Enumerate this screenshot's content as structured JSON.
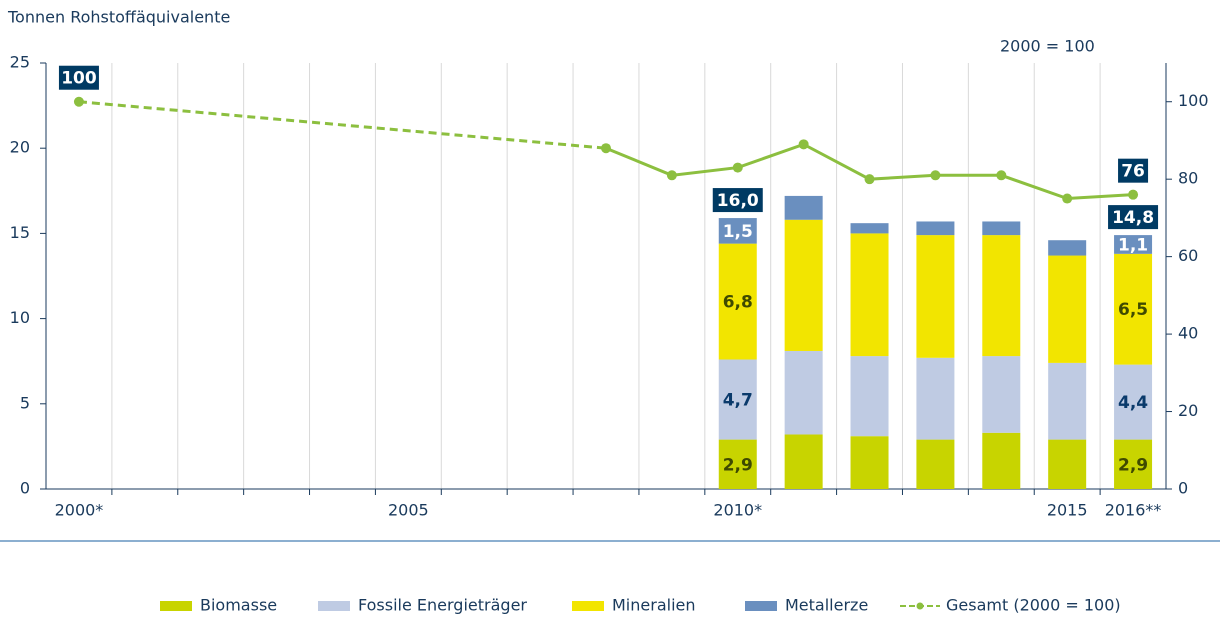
{
  "chart_data": {
    "type": "bar",
    "stacked": true,
    "y_axis_label": "Tonnen Rohstoffäquivalente",
    "y2_axis_label": "2000 = 100",
    "categories": [
      "2000*",
      null,
      null,
      null,
      null,
      "2005",
      null,
      null,
      null,
      null,
      "2010*",
      null,
      null,
      null,
      null,
      "2015",
      "2016**"
    ],
    "ylim": [
      0,
      25
    ],
    "yticks": [
      0,
      5,
      10,
      15,
      20,
      25
    ],
    "y2lim": [
      0,
      110
    ],
    "y2ticks": [
      0,
      20,
      40,
      60,
      80,
      100
    ],
    "grid": "x",
    "legend": "bottom",
    "series": [
      {
        "name": "Biomasse",
        "color": "#c8d400",
        "label_color": "#3f4a00",
        "values": [
          null,
          null,
          null,
          null,
          null,
          null,
          null,
          null,
          null,
          null,
          2.9,
          3.2,
          3.1,
          2.9,
          3.3,
          2.9,
          2.9
        ],
        "value_labels": [
          null,
          null,
          null,
          null,
          null,
          null,
          null,
          null,
          null,
          null,
          "2,9",
          null,
          null,
          null,
          null,
          null,
          "2,9"
        ]
      },
      {
        "name": "Fossile Energieträger",
        "color": "#bfcbe3",
        "label_color": "#0a3a6b",
        "values": [
          null,
          null,
          null,
          null,
          null,
          null,
          null,
          null,
          null,
          null,
          4.7,
          4.9,
          4.7,
          4.8,
          4.5,
          4.5,
          4.4
        ],
        "value_labels": [
          null,
          null,
          null,
          null,
          null,
          null,
          null,
          null,
          null,
          null,
          "4,7",
          null,
          null,
          null,
          null,
          null,
          "4,4"
        ]
      },
      {
        "name": "Mineralien",
        "color": "#f2e500",
        "label_color": "#3f4a00",
        "values": [
          null,
          null,
          null,
          null,
          null,
          null,
          null,
          null,
          null,
          null,
          6.8,
          7.7,
          7.2,
          7.2,
          7.1,
          6.3,
          6.5
        ],
        "value_labels": [
          null,
          null,
          null,
          null,
          null,
          null,
          null,
          null,
          null,
          null,
          "6,8",
          null,
          null,
          null,
          null,
          null,
          "6,5"
        ]
      },
      {
        "name": "Metallerze",
        "color": "#6a8fbf",
        "label_color": "#ffffff",
        "values": [
          null,
          null,
          null,
          null,
          null,
          null,
          null,
          null,
          null,
          null,
          1.5,
          1.4,
          0.6,
          0.8,
          0.8,
          0.9,
          1.1
        ],
        "value_labels": [
          null,
          null,
          null,
          null,
          null,
          null,
          null,
          null,
          null,
          null,
          "1,5",
          null,
          null,
          null,
          null,
          null,
          "1,1"
        ]
      },
      {
        "name": "Gesamt (2000 = 100)",
        "type": "line",
        "axis": "y2",
        "color": "#8cbf3f",
        "values": [
          100,
          null,
          null,
          null,
          null,
          null,
          null,
          null,
          88,
          81,
          83,
          89,
          80,
          81,
          81,
          75,
          76
        ],
        "value_labels": [
          "100",
          null,
          null,
          null,
          null,
          null,
          null,
          null,
          null,
          null,
          null,
          null,
          null,
          null,
          null,
          null,
          "76"
        ]
      }
    ],
    "totals": [
      null,
      null,
      null,
      null,
      null,
      null,
      null,
      null,
      null,
      null,
      16.0,
      null,
      null,
      null,
      null,
      null,
      14.8
    ],
    "total_labels": [
      null,
      null,
      null,
      null,
      null,
      null,
      null,
      null,
      null,
      null,
      "16,0",
      null,
      null,
      null,
      null,
      null,
      "14,8"
    ]
  }
}
